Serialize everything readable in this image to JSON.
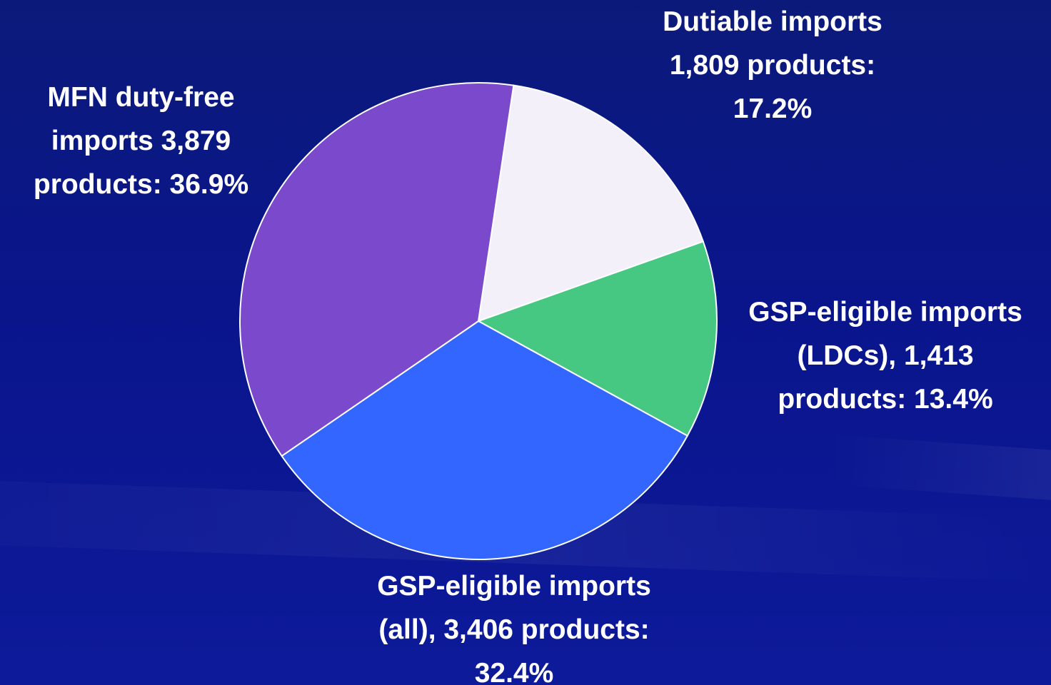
{
  "chart_data": {
    "type": "pie",
    "title": "",
    "slices": [
      {
        "name": "Dutiable imports",
        "value": 17.2,
        "color": "#f4f0fa",
        "label_lines": [
          "Dutiable imports",
          "1,809 products:",
          "17.2%"
        ]
      },
      {
        "name": "GSP-eligible imports (LDCs)",
        "value": 13.4,
        "color": "#47c882",
        "label_lines": [
          "GSP-eligible imports",
          "(LDCs), 1,413",
          "products: 13.4%"
        ]
      },
      {
        "name": "GSP-eligible imports (all)",
        "value": 32.4,
        "color": "#3366ff",
        "label_lines": [
          "GSP-eligible imports",
          "(all), 3,406 products:",
          "32.4%"
        ]
      },
      {
        "name": "MFN duty-free imports",
        "value": 36.9,
        "color": "#7b4acc",
        "label_lines": [
          "MFN duty-free",
          "imports 3,879",
          "products: 36.9%"
        ]
      }
    ],
    "legend": "none"
  }
}
